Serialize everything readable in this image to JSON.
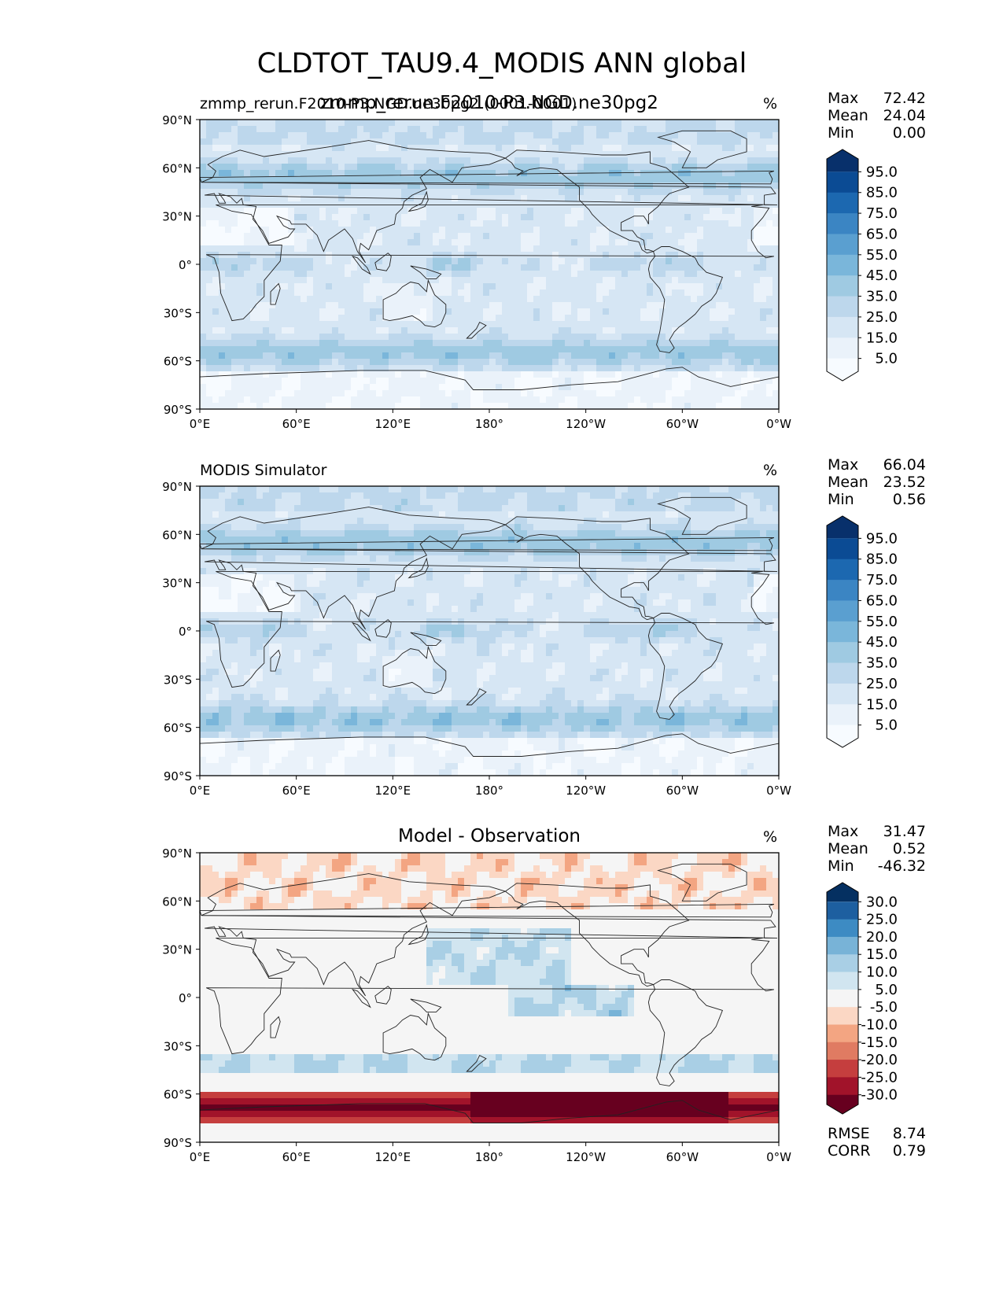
{
  "figure": {
    "title": "CLDTOT_TAU9.4_MODIS ANN global"
  },
  "chart_data": [
    {
      "type": "heatmap",
      "map_projection": "cylindrical",
      "title_center": "zmmp_rerun.F2010-P3.NGD.ne30pg2",
      "title_left": "zmmp_rerun.F2010-P3.NGD.ne30pg2 (0001-0001)",
      "units": "%",
      "lat_ticks": [
        "90°N",
        "60°N",
        "30°N",
        "0°",
        "30°S",
        "60°S",
        "90°S"
      ],
      "lon_ticks": [
        "0°E",
        "60°E",
        "120°E",
        "180°",
        "120°W",
        "60°W",
        "0°W"
      ],
      "xlim": [
        0,
        360
      ],
      "ylim": [
        -90,
        90
      ],
      "stats": {
        "max_label": "Max",
        "max": "72.42",
        "mean_label": "Mean",
        "mean": "24.04",
        "min_label": "Min",
        "min": "0.00"
      },
      "colorbar": {
        "extend": "both",
        "tick_labels": [
          "95.0",
          "85.0",
          "75.0",
          "65.0",
          "55.0",
          "45.0",
          "35.0",
          "25.0",
          "15.0",
          "5.0"
        ],
        "colors": [
          "#08306b",
          "#0b4b94",
          "#1c68b0",
          "#3b85c3",
          "#5a9fd0",
          "#7ab6da",
          "#9fcae2",
          "#bdd7ec",
          "#d6e6f4",
          "#eaf2fa",
          "#f7fbff"
        ]
      }
    },
    {
      "type": "heatmap",
      "map_projection": "cylindrical",
      "title_left": "MODIS Simulator",
      "units": "%",
      "lat_ticks": [
        "90°N",
        "60°N",
        "30°N",
        "0°",
        "30°S",
        "60°S",
        "90°S"
      ],
      "lon_ticks": [
        "0°E",
        "60°E",
        "120°E",
        "180°",
        "120°W",
        "60°W",
        "0°W"
      ],
      "xlim": [
        0,
        360
      ],
      "ylim": [
        -90,
        90
      ],
      "stats": {
        "max_label": "Max",
        "max": "66.04",
        "mean_label": "Mean",
        "mean": "23.52",
        "min_label": "Min",
        "min": "0.56"
      },
      "colorbar": {
        "extend": "both",
        "tick_labels": [
          "95.0",
          "85.0",
          "75.0",
          "65.0",
          "55.0",
          "45.0",
          "35.0",
          "25.0",
          "15.0",
          "5.0"
        ],
        "colors": [
          "#08306b",
          "#0b4b94",
          "#1c68b0",
          "#3b85c3",
          "#5a9fd0",
          "#7ab6da",
          "#9fcae2",
          "#bdd7ec",
          "#d6e6f4",
          "#eaf2fa",
          "#f7fbff"
        ]
      }
    },
    {
      "type": "heatmap",
      "map_projection": "cylindrical",
      "title_center": "Model - Observation",
      "units": "%",
      "lat_ticks": [
        "90°N",
        "60°N",
        "30°N",
        "0°",
        "30°S",
        "60°S",
        "90°S"
      ],
      "lon_ticks": [
        "0°E",
        "60°E",
        "120°E",
        "180°",
        "120°W",
        "60°W",
        "0°W"
      ],
      "xlim": [
        0,
        360
      ],
      "ylim": [
        -90,
        90
      ],
      "stats": {
        "max_label": "Max",
        "max": "31.47",
        "mean_label": "Mean",
        "mean": "0.52",
        "min_label": "Min",
        "min": "-46.32"
      },
      "metrics": {
        "rmse_label": "RMSE",
        "rmse": "8.74",
        "corr_label": "CORR",
        "corr": "0.79"
      },
      "colorbar": {
        "extend": "both",
        "tick_labels": [
          "30.0",
          "25.0",
          "20.0",
          "15.0",
          "10.0",
          "5.0",
          "-5.0",
          "-10.0",
          "-15.0",
          "-20.0",
          "-25.0",
          "-30.0"
        ],
        "colors": [
          "#053061",
          "#1d5fa0",
          "#3d8bc3",
          "#78b3d7",
          "#a9cfe5",
          "#d1e5f0",
          "#f5f5f5",
          "#fbd7c4",
          "#f3a582",
          "#e07b62",
          "#c53e3e",
          "#a1132a",
          "#67001f"
        ]
      }
    }
  ]
}
